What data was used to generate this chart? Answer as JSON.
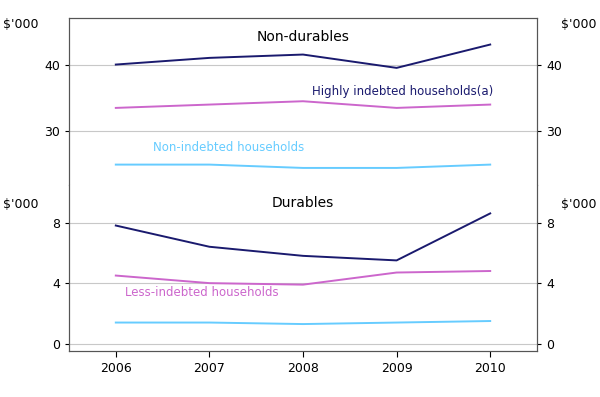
{
  "years": [
    2006,
    2007,
    2008,
    2009,
    2010
  ],
  "nondurables": {
    "title": "Non-durables",
    "highly_indebted": [
      40.0,
      41.0,
      41.5,
      39.5,
      43.0
    ],
    "less_indebted": [
      33.5,
      34.0,
      34.5,
      33.5,
      34.0
    ],
    "non_indebted": [
      25.0,
      25.0,
      24.5,
      24.5,
      25.0
    ],
    "ylim": [
      22,
      47
    ],
    "yticks": [
      30,
      40
    ],
    "ylabel": "$'000"
  },
  "durables": {
    "title": "Durables",
    "highly_indebted": [
      7.8,
      6.4,
      5.8,
      5.5,
      8.6
    ],
    "less_indebted": [
      4.5,
      4.0,
      3.9,
      4.7,
      4.8
    ],
    "non_indebted": [
      1.4,
      1.4,
      1.3,
      1.4,
      1.5
    ],
    "ylim": [
      -0.5,
      10.5
    ],
    "yticks": [
      0,
      4,
      8
    ],
    "ylabel": "$'000"
  },
  "colors": {
    "highly_indebted": "#1a1a6e",
    "less_indebted": "#cc66cc",
    "non_indebted": "#66ccff"
  },
  "label_highly_indebted": "Highly indebted households",
  "label_less_indebted": "Less-indebted households",
  "label_non_indebted": "Non-indebted households",
  "superscript_a": "(a)",
  "background_color": "#ffffff",
  "grid_color": "#c8c8c8"
}
